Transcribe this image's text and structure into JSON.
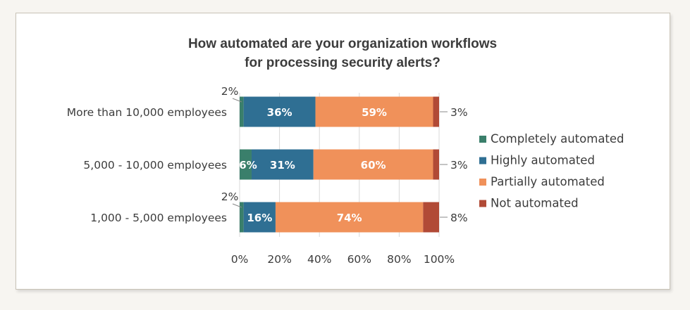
{
  "chart_data": {
    "type": "bar",
    "orientation": "horizontal",
    "stacked": true,
    "title": "How automated are your organization workflows for processing security alerts?",
    "title_lines": [
      "How automated are your organization workflows",
      "for processing security alerts?"
    ],
    "categories": [
      "More than 10,000 employees",
      "5,000 - 10,000 employees",
      "1,000 - 5,000 employees"
    ],
    "series": [
      {
        "name": "Completely automated",
        "values": [
          2,
          6,
          2
        ],
        "color": "#3a7f6b"
      },
      {
        "name": "Highly automated",
        "values": [
          36,
          31,
          16
        ],
        "color": "#2f6f93"
      },
      {
        "name": "Partially automated",
        "values": [
          59,
          60,
          74
        ],
        "color": "#f0915a"
      },
      {
        "name": "Not automated",
        "values": [
          3,
          3,
          8
        ],
        "color": "#b14a36"
      }
    ],
    "data_labels": [
      [
        "2%",
        "36%",
        "59%",
        "3%"
      ],
      [
        "6%",
        "31%",
        "60%",
        "3%"
      ],
      [
        "2%",
        "16%",
        "74%",
        "8%"
      ]
    ],
    "xlim": [
      0,
      100
    ],
    "x_ticks": [
      0,
      20,
      40,
      60,
      80,
      100
    ],
    "x_tick_labels": [
      "0%",
      "20%",
      "40%",
      "60%",
      "80%",
      "100%"
    ],
    "grid": true,
    "legend_position": "right",
    "xlabel": "",
    "ylabel": ""
  }
}
